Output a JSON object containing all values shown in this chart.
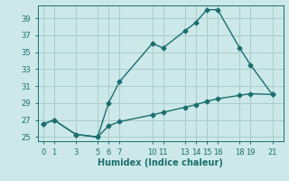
{
  "xlabel": "Humidex (Indice chaleur)",
  "ylabel": "",
  "background_color": "#cce8e8",
  "grid_color": "#aacccc",
  "line_color": "#1a6e6e",
  "line1_x": [
    0,
    1,
    3,
    5,
    6,
    7,
    10,
    11,
    13,
    14,
    15,
    16,
    18,
    19,
    21
  ],
  "line1_y": [
    26.5,
    27.0,
    25.3,
    25.0,
    29.0,
    31.5,
    36.0,
    35.5,
    37.5,
    38.5,
    40.0,
    40.0,
    35.5,
    33.5,
    30.0
  ],
  "line2_x": [
    0,
    1,
    3,
    5,
    6,
    7,
    10,
    11,
    13,
    14,
    15,
    16,
    18,
    19,
    21
  ],
  "line2_y": [
    26.5,
    27.0,
    25.3,
    25.0,
    26.3,
    26.8,
    27.6,
    27.9,
    28.5,
    28.8,
    29.2,
    29.5,
    29.9,
    30.1,
    30.0
  ],
  "ylim": [
    24.5,
    40.5
  ],
  "yticks": [
    25,
    27,
    29,
    31,
    33,
    35,
    37,
    39
  ],
  "xtick_positions": [
    0,
    1,
    3,
    5,
    6,
    7,
    10,
    11,
    13,
    14,
    15,
    16,
    18,
    19,
    21
  ],
  "xtick_labels": [
    "0",
    "1",
    "3",
    "5",
    "6",
    "7",
    "10",
    "11",
    "13",
    "14",
    "15",
    "16",
    "18",
    "19",
    "21"
  ],
  "xlim": [
    -0.5,
    22
  ],
  "marker": "D",
  "markersize": 2.5,
  "linewidth": 1.0,
  "xlabel_fontsize": 7,
  "tick_fontsize": 6
}
